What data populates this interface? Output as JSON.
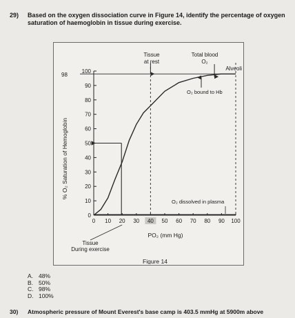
{
  "question29": {
    "number": "29)",
    "text_part1": "Based on the oxygen dissociation curve in ",
    "text_bold": "Figure 14",
    "text_part2": ", identify the percentage of oxygen saturation of haemoglobin in tissue during exercise."
  },
  "figure": {
    "caption": "Figure 14",
    "chart_data": {
      "type": "line",
      "xlabel": "PO₂ (mm Hg)",
      "ylabel": "% O₂ Saturation of Hemoglobin",
      "x_ticks": [
        0,
        10,
        20,
        30,
        40,
        50,
        60,
        70,
        80,
        90,
        100
      ],
      "y_ticks": [
        0,
        10,
        20,
        30,
        40,
        50,
        60,
        70,
        80,
        90,
        100
      ],
      "xlim": [
        0,
        100
      ],
      "ylim": [
        0,
        100
      ],
      "series": [
        {
          "name": "O₂ bound to Hb",
          "x": [
            0,
            5,
            10,
            15,
            20,
            25,
            30,
            35,
            40,
            50,
            60,
            70,
            80,
            90,
            100
          ],
          "y": [
            0,
            4,
            12,
            25,
            37,
            52,
            63,
            71,
            76,
            86,
            92,
            95,
            97,
            98,
            98
          ]
        },
        {
          "name": "O₂ dissolved in plasma",
          "x": [
            0,
            100
          ],
          "y": [
            0,
            0
          ]
        }
      ],
      "annotations": {
        "tissue_rest": "Tissue\nat rest",
        "tissue_rest_line1": "Tissue",
        "tissue_rest_line2": "at rest",
        "total_blood": "Total blood",
        "o2_symbol": "O₂",
        "alveoli": "Alveoli",
        "label_98": "98",
        "bound": "O₂ bound to Hb",
        "dissolved": "O₂ dissolved in plasma",
        "tissue_exercise_line1": "Tissue",
        "tissue_exercise_line2": "During exercise"
      },
      "tissue_exercise_x": 20,
      "tissue_rest_x": 40,
      "alveoli_x": 100,
      "reference_y": 50,
      "saturation_98": 98
    }
  },
  "answers": [
    {
      "letter": "A.",
      "text": "48%"
    },
    {
      "letter": "B.",
      "text": "50%"
    },
    {
      "letter": "C.",
      "text": "98%"
    },
    {
      "letter": "D.",
      "text": "100%"
    }
  ],
  "question30": {
    "number": "30)",
    "text": "Atmospheric pressure of Mount Everest's base camp is 403.5 mmHg at 5900m above"
  },
  "colors": {
    "curve": "#2a2a2a",
    "dashed": "#3a3a3a",
    "highlight_box": "#c9c7c2"
  }
}
